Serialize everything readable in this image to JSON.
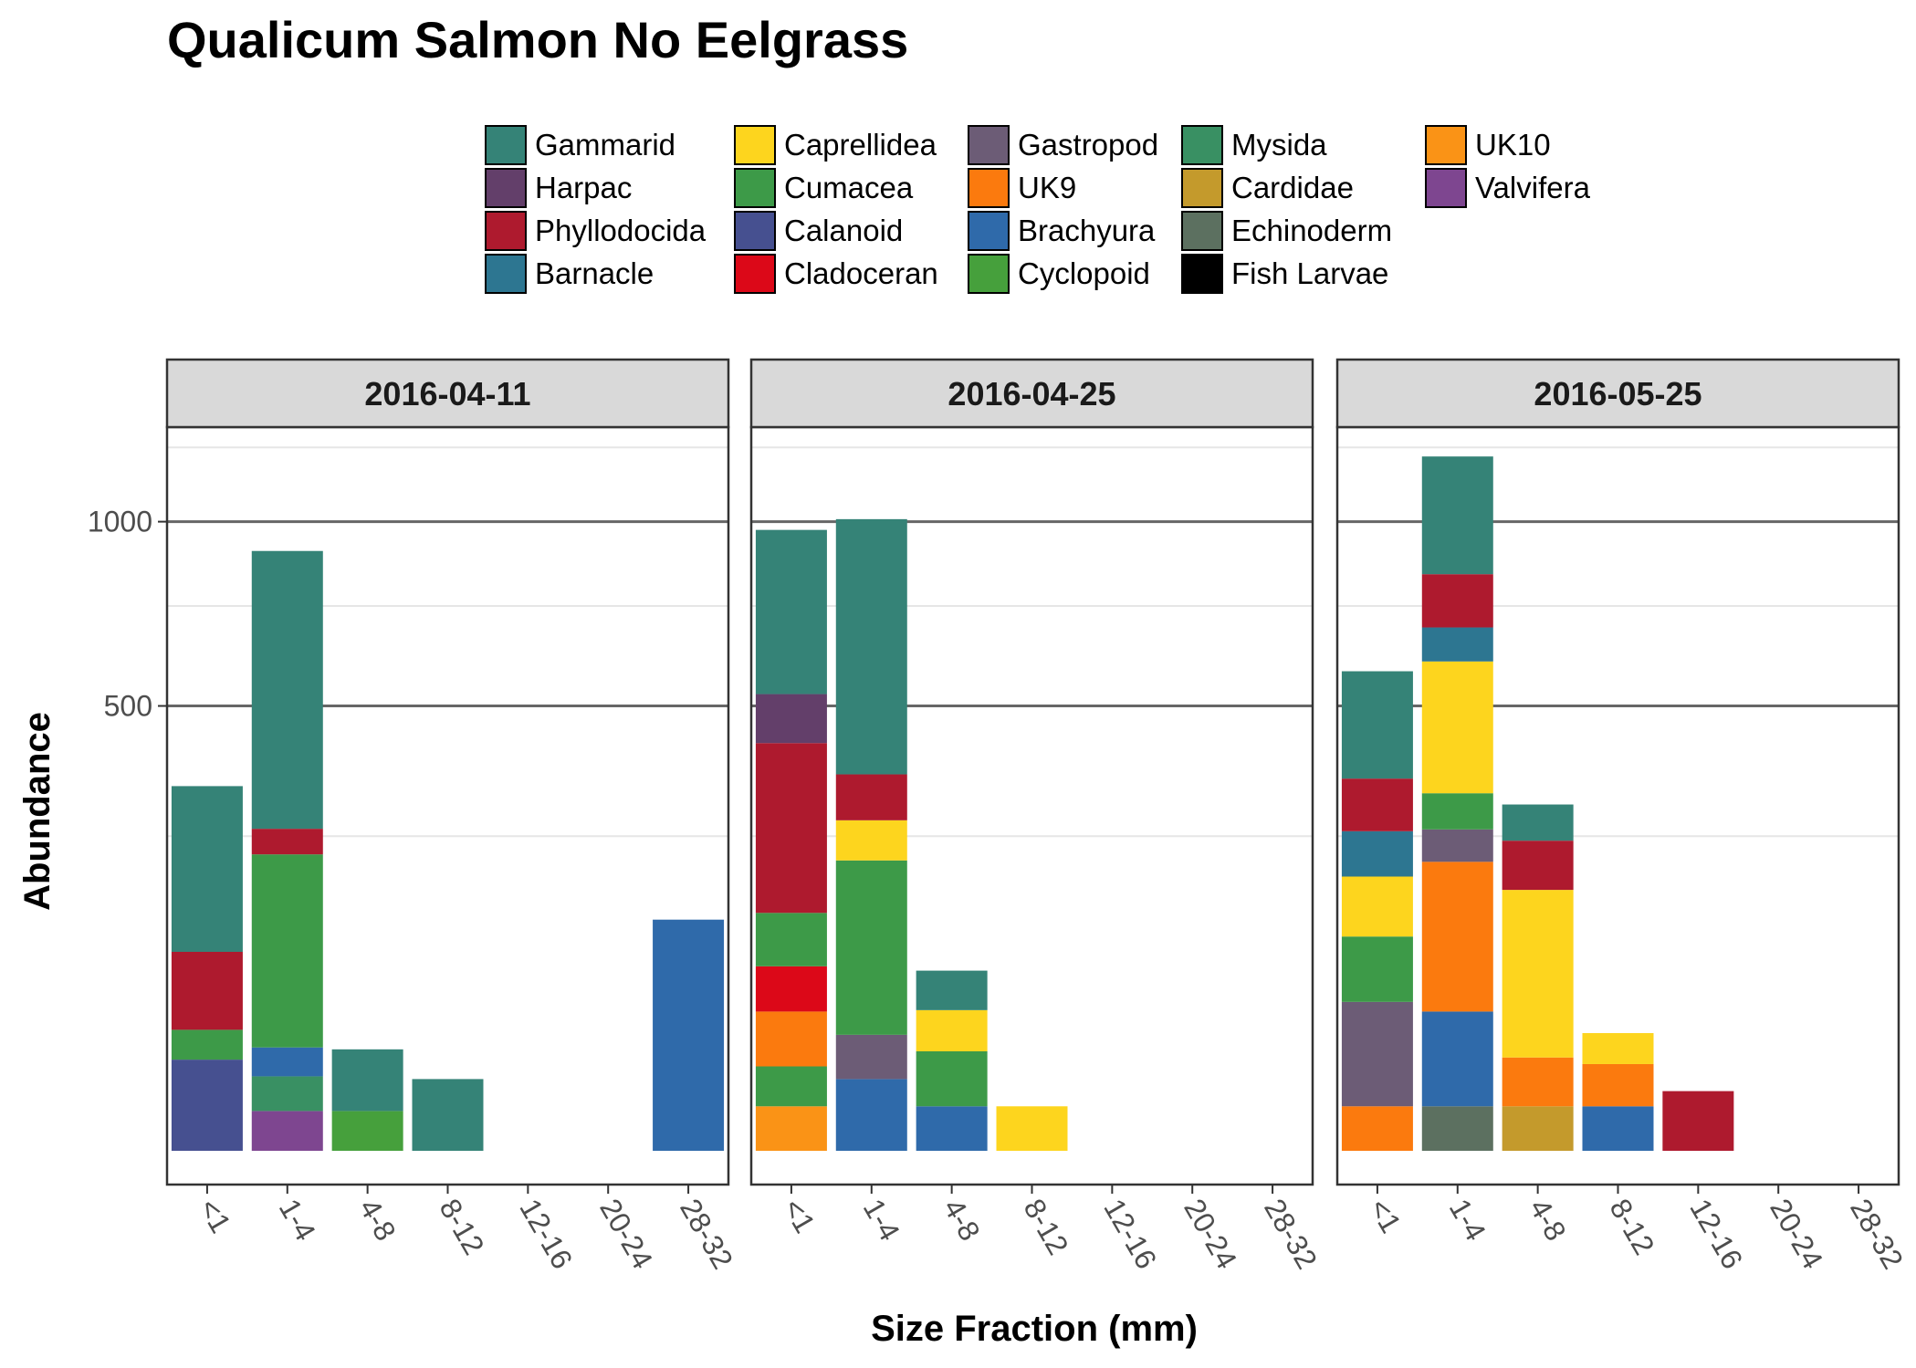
{
  "chart_data": {
    "type": "bar",
    "stacked": true,
    "title": "Qualicum Salmon No Eelgrass",
    "xlabel": "Size Fraction (mm)",
    "ylabel": "Abundance",
    "y_scale": "sqrt",
    "yticks": [
      500,
      1000
    ],
    "ylim": [
      0,
      1310
    ],
    "grid": true,
    "legend_position": "top",
    "categories": [
      "<1",
      "1-4",
      "4-8",
      "8-12",
      "12-16",
      "20-24",
      "28-32"
    ],
    "legend": [
      {
        "name": "Gammarid",
        "color": "#358377"
      },
      {
        "name": "Harpac",
        "color": "#633F6A"
      },
      {
        "name": "Phyllodocida",
        "color": "#AE1A2E"
      },
      {
        "name": "Barnacle",
        "color": "#2D7691"
      },
      {
        "name": "Caprellidea",
        "color": "#FDD51E"
      },
      {
        "name": "Cumacea",
        "color": "#3D9A48"
      },
      {
        "name": "Calanoid",
        "color": "#465090"
      },
      {
        "name": "Cladoceran",
        "color": "#DC0818"
      },
      {
        "name": "Gastropod",
        "color": "#6C5C76"
      },
      {
        "name": "UK9",
        "color": "#FB7A0E"
      },
      {
        "name": "Brachyura",
        "color": "#2F6AAA"
      },
      {
        "name": "Cyclopoid",
        "color": "#46A03C"
      },
      {
        "name": "Mysida",
        "color": "#399063"
      },
      {
        "name": "Cardidae",
        "color": "#C49A2C"
      },
      {
        "name": "Echinoderm",
        "color": "#5C7060"
      },
      {
        "name": "Fish Larvae",
        "color": "#000000"
      },
      {
        "name": "UK10",
        "color": "#FA9316"
      },
      {
        "name": "Valvifera",
        "color": "#7E4690"
      }
    ],
    "panels": [
      {
        "title": "2016-04-11",
        "stacks": [
          {
            "category": "<1",
            "segments": [
              {
                "taxon": "Calanoid",
                "value": 21
              },
              {
                "taxon": "Cumacea",
                "value": 16
              },
              {
                "taxon": "Phyllodocida",
                "value": 63
              },
              {
                "taxon": "Gammarid",
                "value": 236
              }
            ]
          },
          {
            "category": "1-4",
            "segments": [
              {
                "taxon": "Valvifera",
                "value": 4
              },
              {
                "taxon": "Mysida",
                "value": 10
              },
              {
                "taxon": "Brachyura",
                "value": 13
              },
              {
                "taxon": "Cumacea",
                "value": 195
              },
              {
                "taxon": "Phyllodocida",
                "value": 40
              },
              {
                "taxon": "Gammarid",
                "value": 647
              }
            ]
          },
          {
            "category": "4-8",
            "segments": [
              {
                "taxon": "Cyclopoid",
                "value": 4
              },
              {
                "taxon": "Gammarid",
                "value": 22
              }
            ]
          },
          {
            "category": "8-12",
            "segments": [
              {
                "taxon": "Gammarid",
                "value": 13
              }
            ]
          },
          {
            "category": "28-32",
            "segments": [
              {
                "taxon": "Brachyura",
                "value": 135
              }
            ]
          }
        ]
      },
      {
        "title": "2016-04-25",
        "stacks": [
          {
            "category": "<1",
            "segments": [
              {
                "taxon": "UK10",
                "value": 5
              },
              {
                "taxon": "Cumacea",
                "value": 13
              },
              {
                "taxon": "UK9",
                "value": 31
              },
              {
                "taxon": "Cladoceran",
                "value": 37
              },
              {
                "taxon": "Cumacea",
                "value": 57
              },
              {
                "taxon": "Phyllodocida",
                "value": 277
              },
              {
                "taxon": "Harpac",
                "value": 107
              },
              {
                "taxon": "Gammarid",
                "value": 447
              }
            ]
          },
          {
            "category": "1-4",
            "segments": [
              {
                "taxon": "Brachyura",
                "value": 13
              },
              {
                "taxon": "Gastropod",
                "value": 21
              },
              {
                "taxon": "Cumacea",
                "value": 179
              },
              {
                "taxon": "Caprellidea",
                "value": 63
              },
              {
                "taxon": "Phyllodocida",
                "value": 82
              },
              {
                "taxon": "Gammarid",
                "value": 650
              }
            ]
          },
          {
            "category": "4-8",
            "segments": [
              {
                "taxon": "Brachyura",
                "value": 5
              },
              {
                "taxon": "Cumacea",
                "value": 20
              },
              {
                "taxon": "Caprellidea",
                "value": 25
              },
              {
                "taxon": "Gammarid",
                "value": 32
              }
            ]
          },
          {
            "category": "8-12",
            "segments": [
              {
                "taxon": "Caprellidea",
                "value": 5
              }
            ]
          }
        ]
      },
      {
        "title": "2016-05-25",
        "stacks": [
          {
            "category": "<1",
            "segments": [
              {
                "taxon": "UK9",
                "value": 5
              },
              {
                "taxon": "Gastropod",
                "value": 51
              },
              {
                "taxon": "Cumacea",
                "value": 60
              },
              {
                "taxon": "Caprellidea",
                "value": 74
              },
              {
                "taxon": "Barnacle",
                "value": 68
              },
              {
                "taxon": "Phyllodocida",
                "value": 92
              },
              {
                "taxon": "Gammarid",
                "value": 231
              }
            ]
          },
          {
            "category": "1-4",
            "segments": [
              {
                "taxon": "Echinoderm",
                "value": 5
              },
              {
                "taxon": "Brachyura",
                "value": 44
              },
              {
                "taxon": "UK9",
                "value": 162
              },
              {
                "taxon": "Gastropod",
                "value": 50
              },
              {
                "taxon": "Cumacea",
                "value": 62
              },
              {
                "taxon": "Caprellidea",
                "value": 282
              },
              {
                "taxon": "Barnacle",
                "value": 87
              },
              {
                "taxon": "Phyllodocida",
                "value": 148
              },
              {
                "taxon": "Gammarid",
                "value": 378
              }
            ]
          },
          {
            "category": "4-8",
            "segments": [
              {
                "taxon": "Cardidae",
                "value": 5
              },
              {
                "taxon": "UK9",
                "value": 17
              },
              {
                "taxon": "Caprellidea",
                "value": 150
              },
              {
                "taxon": "Phyllodocida",
                "value": 71
              },
              {
                "taxon": "Gammarid",
                "value": 60
              }
            ]
          },
          {
            "category": "8-12",
            "segments": [
              {
                "taxon": "Brachyura",
                "value": 5
              },
              {
                "taxon": "UK9",
                "value": 14
              },
              {
                "taxon": "Caprellidea",
                "value": 16
              }
            ]
          },
          {
            "category": "12-16",
            "segments": [
              {
                "taxon": "Phyllodocida",
                "value": 9
              }
            ]
          }
        ]
      }
    ]
  }
}
